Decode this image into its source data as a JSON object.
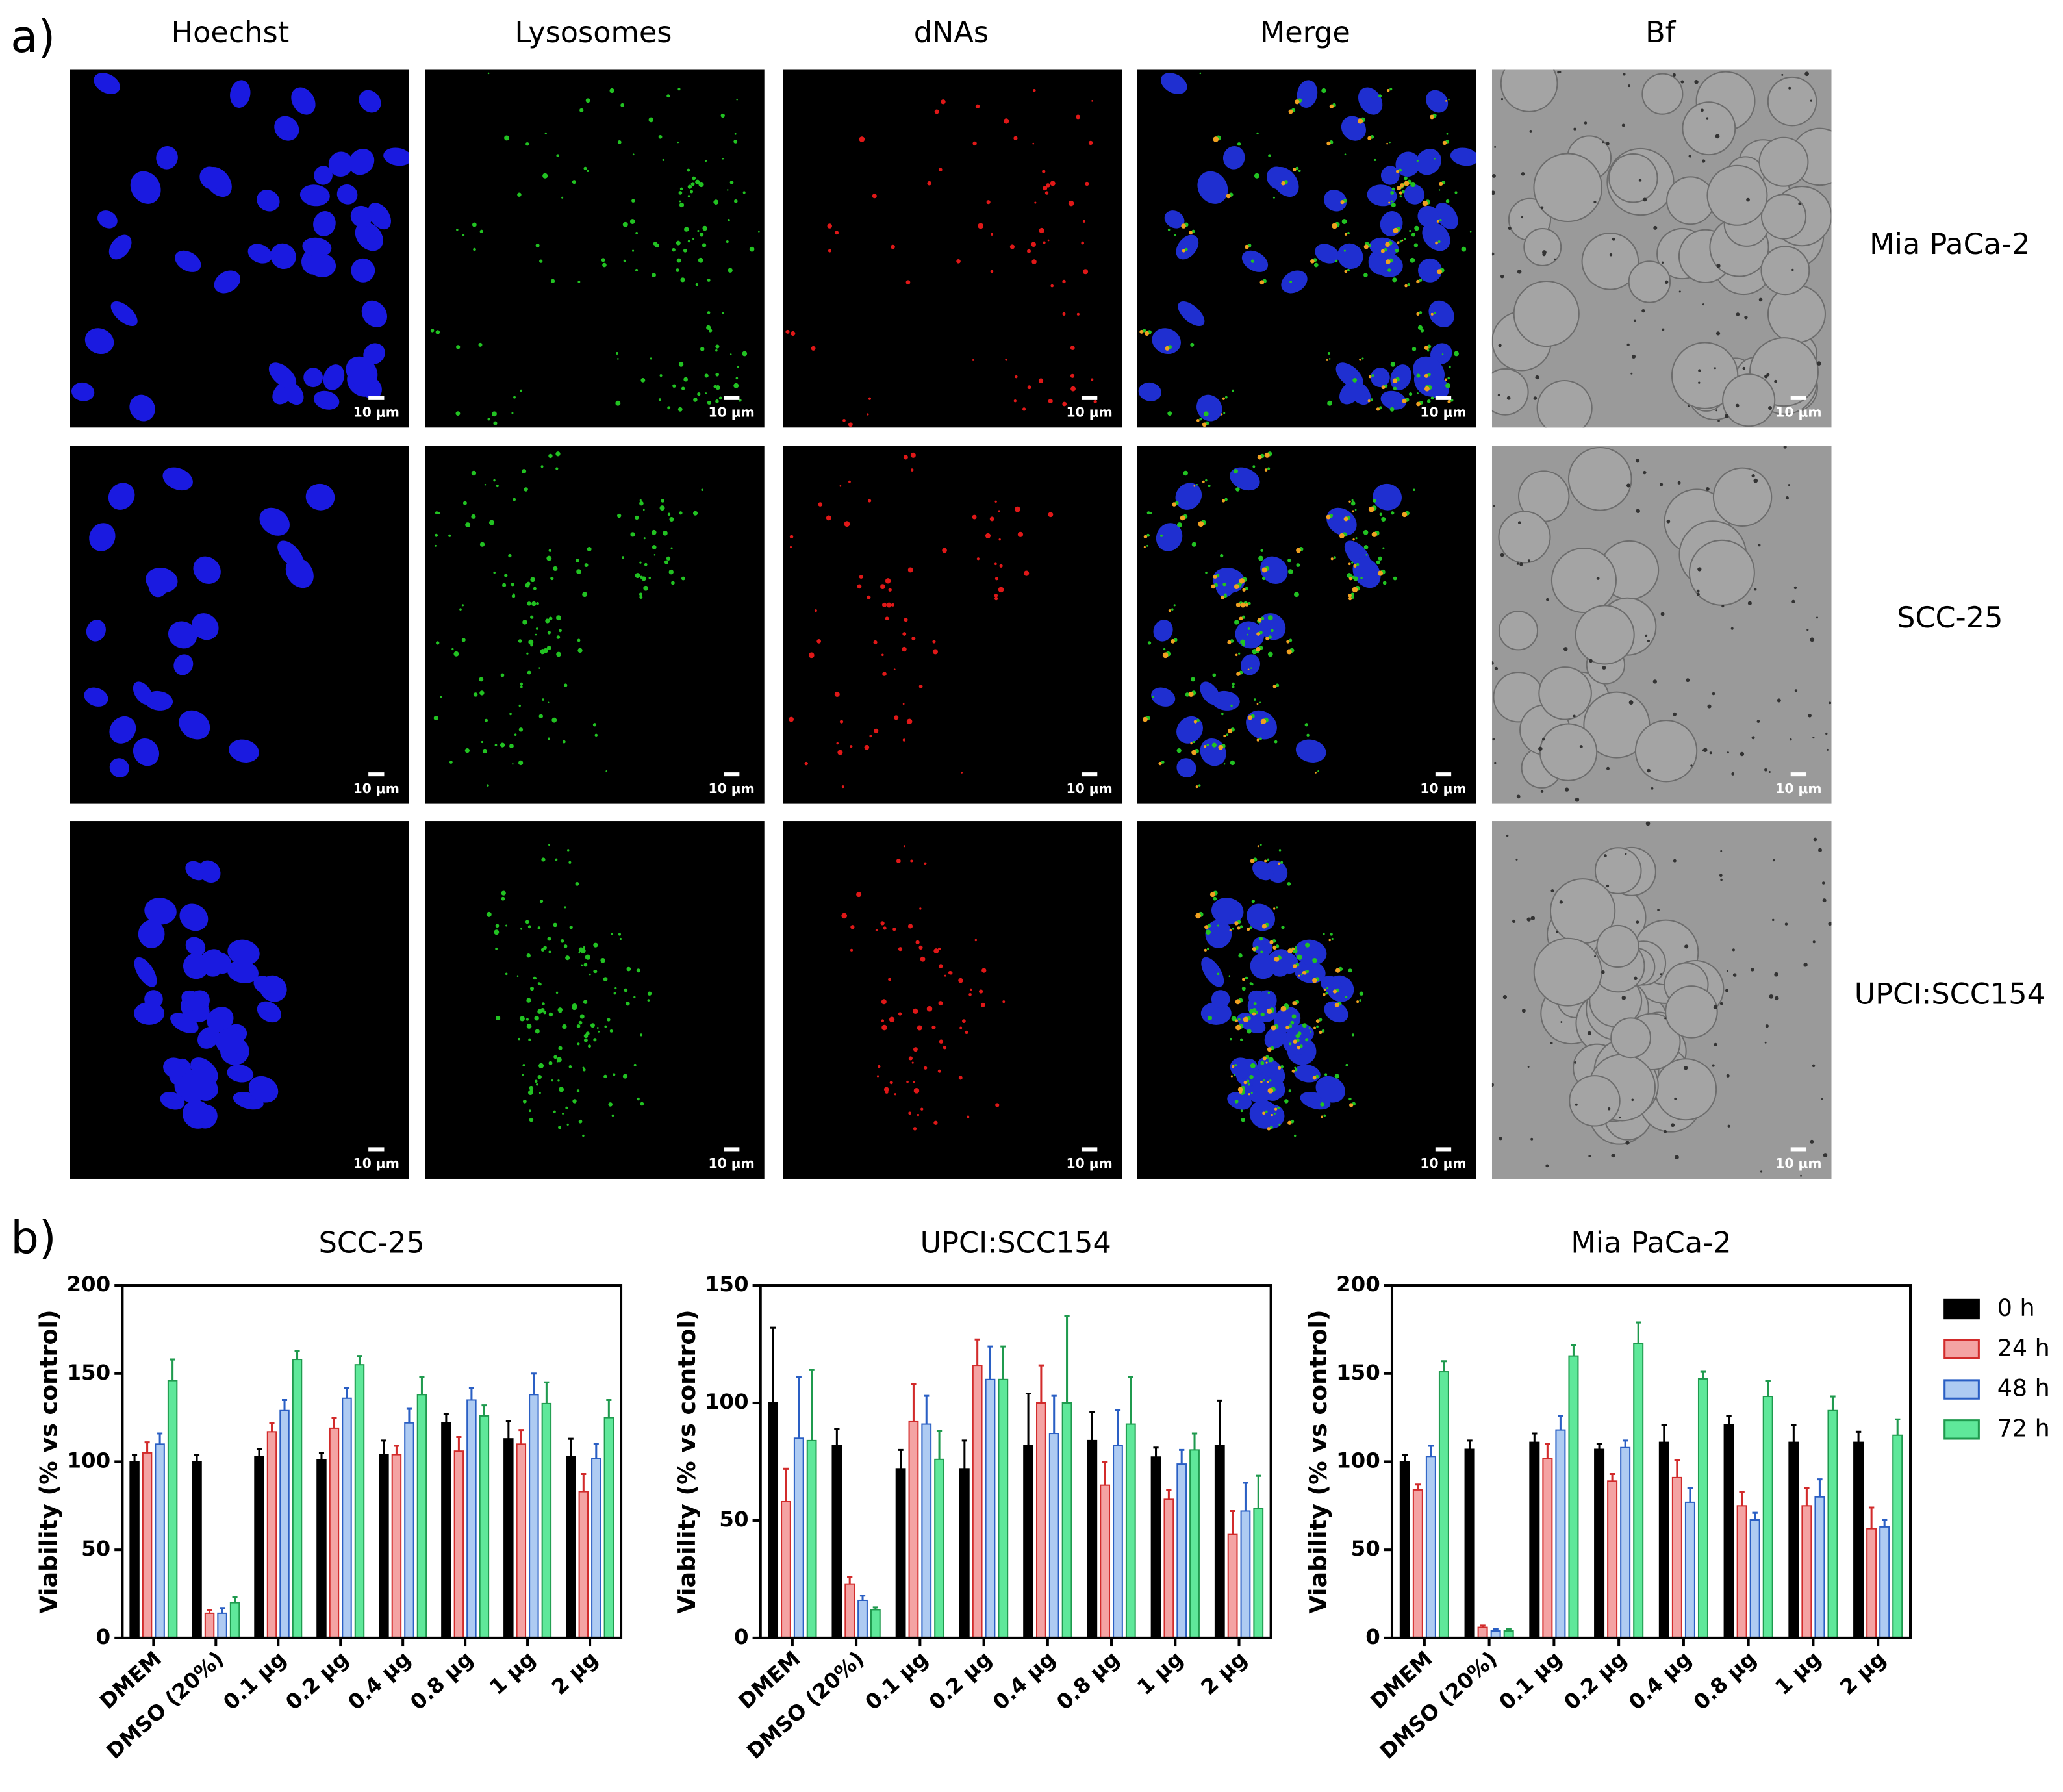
{
  "panel_a": {
    "label": "a)",
    "columns": [
      "Hoechst",
      "Lysosomes",
      "dNAs",
      "Merge",
      "Bf"
    ],
    "rows": [
      "Mia PaCa-2",
      "SCC-25",
      "UPCI:SCC154"
    ],
    "scale_bar": "10 μm"
  },
  "panel_b": {
    "label": "b)"
  },
  "chart_data": [
    {
      "type": "bar",
      "title": "SCC-25",
      "ylabel": "Viability (% vs control)",
      "categories": [
        "DMEM",
        "DMSO (20%)",
        "0.1 μg",
        "0.2 μg",
        "0.4 μg",
        "0.8 μg",
        "1 μg",
        "2 μg"
      ],
      "ylim": [
        0,
        200
      ],
      "yticks": [
        0,
        50,
        100,
        150,
        200
      ],
      "series": [
        {
          "color": "#000000",
          "edgecolor": "#000000",
          "values": [
            100,
            100,
            103,
            101,
            104,
            122,
            113,
            103
          ],
          "errors": [
            4,
            4,
            4,
            4,
            8,
            5,
            10,
            10
          ]
        },
        {
          "color": "#f4a3a3",
          "edgecolor": "#d22b2b",
          "values": [
            105,
            14,
            117,
            119,
            104,
            106,
            110,
            83
          ],
          "errors": [
            6,
            2,
            5,
            6,
            5,
            8,
            8,
            10
          ]
        },
        {
          "color": "#aecbf2",
          "edgecolor": "#2a5fc4",
          "values": [
            110,
            14,
            129,
            136,
            122,
            135,
            138,
            102
          ],
          "errors": [
            6,
            3,
            6,
            6,
            8,
            7,
            12,
            8
          ]
        },
        {
          "color": "#5fe89a",
          "edgecolor": "#1f9a4e",
          "values": [
            146,
            20,
            158,
            155,
            138,
            126,
            133,
            125
          ],
          "errors": [
            12,
            3,
            5,
            5,
            10,
            6,
            12,
            10
          ]
        }
      ]
    },
    {
      "type": "bar",
      "title": "UPCI:SCC154",
      "ylabel": "Viability (% vs control)",
      "categories": [
        "DMEM",
        "DMSO (20%)",
        "0.1 μg",
        "0.2 μg",
        "0.4 μg",
        "0.8 μg",
        "1 μg",
        "2 μg"
      ],
      "ylim": [
        0,
        150
      ],
      "yticks": [
        0,
        50,
        100,
        150
      ],
      "series": [
        {
          "color": "#000000",
          "edgecolor": "#000000",
          "values": [
            100,
            82,
            72,
            72,
            82,
            84,
            77,
            82
          ],
          "errors": [
            32,
            7,
            8,
            12,
            22,
            12,
            4,
            19
          ]
        },
        {
          "color": "#f4a3a3",
          "edgecolor": "#d22b2b",
          "values": [
            58,
            23,
            92,
            116,
            100,
            65,
            59,
            44
          ],
          "errors": [
            14,
            3,
            16,
            11,
            16,
            10,
            4,
            10
          ]
        },
        {
          "color": "#aecbf2",
          "edgecolor": "#2a5fc4",
          "values": [
            85,
            16,
            91,
            110,
            87,
            82,
            74,
            54
          ],
          "errors": [
            26,
            2,
            12,
            14,
            16,
            15,
            6,
            12
          ]
        },
        {
          "color": "#5fe89a",
          "edgecolor": "#1f9a4e",
          "values": [
            84,
            12,
            76,
            110,
            100,
            91,
            80,
            55
          ],
          "errors": [
            30,
            1,
            12,
            14,
            37,
            20,
            7,
            14
          ]
        }
      ]
    },
    {
      "type": "bar",
      "title": "Mia PaCa-2",
      "ylabel": "Viability (% vs control)",
      "categories": [
        "DMEM",
        "DMSO (20%)",
        "0.1 μg",
        "0.2 μg",
        "0.4 μg",
        "0.8 μg",
        "1 μg",
        "2 μg"
      ],
      "ylim": [
        0,
        200
      ],
      "yticks": [
        0,
        50,
        100,
        150,
        200
      ],
      "legend": "right",
      "series": [
        {
          "name": "0 h",
          "color": "#000000",
          "edgecolor": "#000000",
          "values": [
            100,
            107,
            111,
            107,
            111,
            121,
            111,
            111
          ],
          "errors": [
            4,
            5,
            5,
            3,
            10,
            5,
            10,
            6
          ]
        },
        {
          "name": "24 h",
          "color": "#f4a3a3",
          "edgecolor": "#d22b2b",
          "values": [
            84,
            6,
            102,
            89,
            91,
            75,
            75,
            62
          ],
          "errors": [
            3,
            1,
            8,
            4,
            10,
            8,
            10,
            12
          ]
        },
        {
          "name": "48 h",
          "color": "#aecbf2",
          "edgecolor": "#2a5fc4",
          "values": [
            103,
            4,
            118,
            108,
            77,
            67,
            80,
            63
          ],
          "errors": [
            6,
            1,
            8,
            4,
            8,
            4,
            10,
            4
          ]
        },
        {
          "name": "72 h",
          "color": "#5fe89a",
          "edgecolor": "#1f9a4e",
          "values": [
            151,
            4,
            160,
            167,
            147,
            137,
            129,
            115
          ],
          "errors": [
            6,
            1,
            6,
            12,
            4,
            9,
            8,
            9
          ]
        }
      ]
    }
  ]
}
